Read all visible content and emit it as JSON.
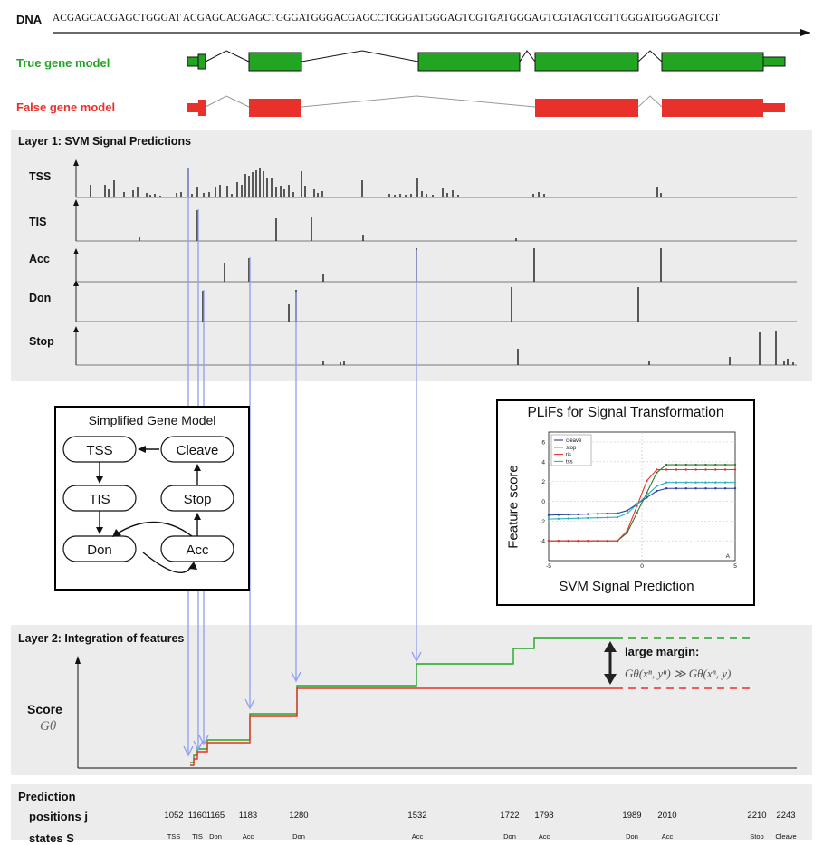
{
  "dna": {
    "label": "DNA",
    "sequence": "ACGAGCACGAGCTGGGAT ACGAGCACGAGCTGGGATGGGACGAGCCTGGGATGGGAGTCGTGATGGGAGTCGTAGTCGTTGGGATGGGAGTCGT"
  },
  "gene_models": {
    "true_label": "True gene model",
    "false_label": "False gene model",
    "true_color": "#22a622",
    "false_color": "#e8312a"
  },
  "layer1": {
    "title": "Layer 1: SVM Signal Predictions",
    "tracks": [
      "TSS",
      "TIS",
      "Acc",
      "Don",
      "Stop"
    ]
  },
  "gene_model_inset": {
    "title": "Simplified Gene Model",
    "nodes": [
      "TSS",
      "Cleave",
      "TIS",
      "Stop",
      "Don",
      "Acc"
    ]
  },
  "plif_inset": {
    "title": "PLiFs for Signal Transformation",
    "ylabel": "Feature score",
    "xlabel": "SVM Signal Prediction",
    "corner_label": "A",
    "chart_data": {
      "type": "line",
      "xlim": [
        -5,
        5
      ],
      "ylim": [
        -6,
        7
      ],
      "x_ticks": [
        "-5",
        "0",
        "5"
      ],
      "y_ticks": [
        "-4",
        "-2",
        "0",
        "2",
        "4",
        "6"
      ],
      "legend": [
        "cleave",
        "stop",
        "tis",
        "tss"
      ],
      "legend_placement": "top-left",
      "series": [
        {
          "name": "cleave",
          "color": "#2b3fa0",
          "x": [
            -5,
            -1,
            1,
            5
          ],
          "y": [
            -1.4,
            -1.2,
            1.3,
            1.3
          ]
        },
        {
          "name": "stop",
          "color": "#2f7a2f",
          "x": [
            -5,
            -1,
            1,
            5
          ],
          "y": [
            -4.0,
            -4.0,
            3.7,
            3.7
          ]
        },
        {
          "name": "tis",
          "color": "#e8312a",
          "x": [
            -5,
            -1,
            0.5,
            5
          ],
          "y": [
            -4.0,
            -4.0,
            3.2,
            3.2
          ]
        },
        {
          "name": "tss",
          "color": "#2ab0c0",
          "x": [
            -5,
            -1,
            1,
            5
          ],
          "y": [
            -1.8,
            -1.6,
            1.9,
            1.9
          ]
        }
      ]
    }
  },
  "layer2": {
    "title": "Layer 2: Integration of features",
    "score_label": "Score",
    "score_symbol": "Gθ",
    "margin_label": "large margin:",
    "margin_formula": "Gθ(xⁿ, yⁿ) ≫ Gθ(xⁿ, y)"
  },
  "prediction": {
    "title": "Prediction",
    "positions_label": "positions j",
    "states_label": "states S",
    "positions": [
      "1052",
      "1160",
      "1165",
      "1183",
      "1280",
      "1532",
      "1722",
      "1798",
      "1989",
      "2010",
      "2210",
      "2243"
    ],
    "states": [
      "TSS",
      "TIS",
      "Don",
      "Acc",
      "Don",
      "Acc",
      "Don",
      "Acc",
      "Don",
      "Acc",
      "Stop",
      "Cleave"
    ]
  }
}
